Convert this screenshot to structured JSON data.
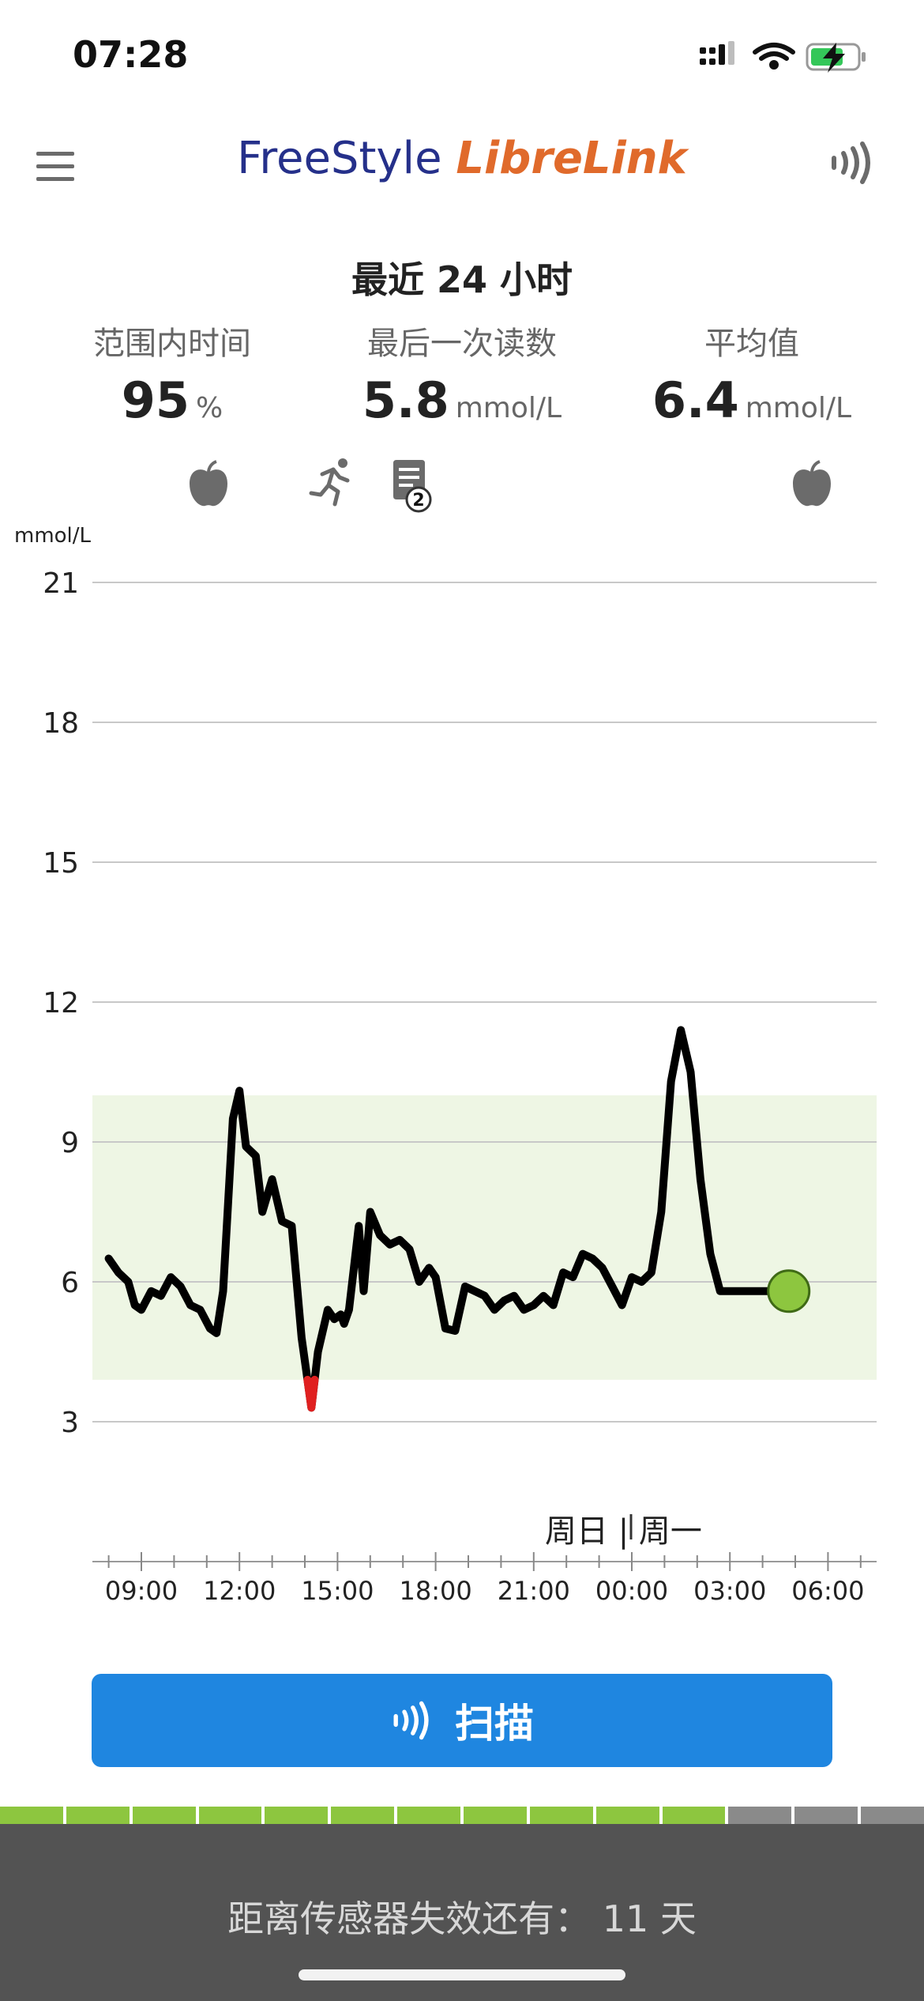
{
  "status_bar": {
    "time": "07:28"
  },
  "header": {
    "brand_part1": "FreeStyle ",
    "brand_part2": "LibreLink"
  },
  "summary": {
    "period_title": "最近 24 小时",
    "time_in_range": {
      "label": "范围内时间",
      "value": "95",
      "unit": "%"
    },
    "last_reading": {
      "label": "最后一次读数",
      "value": "5.8",
      "unit": "mmol/L"
    },
    "average": {
      "label": "平均值",
      "value": "6.4",
      "unit": "mmol/L"
    },
    "note_badge": "2"
  },
  "chart_data": {
    "type": "line",
    "ylabel": "mmol/L",
    "yticks": [
      "21",
      "18",
      "15",
      "12",
      "9",
      "6",
      "3"
    ],
    "ylim": [
      3,
      21
    ],
    "target_range": [
      3.9,
      10.0
    ],
    "low_threshold": 3.9,
    "xticks": [
      "09:00",
      "12:00",
      "15:00",
      "18:00",
      "21:00",
      "00:00",
      "03:00",
      "06:00"
    ],
    "x_unit": "hours since 09:00 (Sunday)",
    "day_labels": [
      "周日",
      "周一"
    ],
    "grid": true,
    "line_color": "#000000",
    "low_color": "#e02020",
    "range_fill": "#eef6e4",
    "current_marker_color": "#8dc63f",
    "series": [
      {
        "x": [
          -1.0,
          -0.7,
          -0.4,
          -0.2,
          0.0,
          0.3,
          0.6,
          0.9,
          1.2,
          1.5,
          1.8,
          2.1,
          2.3,
          2.5,
          2.8,
          3.0,
          3.2,
          3.5,
          3.7,
          4.0,
          4.3,
          4.6,
          4.9,
          5.2,
          5.4,
          5.7,
          5.9,
          6.1,
          6.2,
          6.35,
          6.5,
          6.65,
          6.8,
          7.0,
          7.3,
          7.6,
          7.9,
          8.2,
          8.5,
          8.8,
          9.0,
          9.3,
          9.6,
          9.9,
          10.2,
          10.5,
          10.8,
          11.1,
          11.4,
          11.7,
          12.0,
          12.3,
          12.6,
          12.9,
          13.2,
          13.5,
          13.8,
          14.1,
          14.4,
          14.7,
          15.0,
          15.3,
          15.6,
          15.9,
          16.2,
          16.5,
          16.8,
          17.1,
          17.4,
          17.7,
          18.0,
          18.3,
          18.6,
          18.9,
          19.2,
          19.5,
          19.8,
          20.1,
          20.4,
          20.7,
          20.9,
          21.1,
          21.3,
          21.5,
          21.7,
          21.9
        ],
        "y": [
          6.5,
          6.2,
          6.0,
          5.5,
          5.4,
          5.8,
          5.7,
          6.1,
          5.9,
          5.5,
          5.4,
          5.0,
          4.9,
          5.8,
          9.5,
          10.1,
          8.9,
          8.7,
          7.5,
          8.2,
          7.3,
          7.2,
          4.8,
          3.3,
          4.5,
          5.4,
          5.2,
          5.3,
          5.1,
          5.4,
          6.3,
          7.2,
          5.8,
          7.5,
          7.0,
          6.8,
          6.9,
          6.7,
          6.0,
          6.3,
          6.1,
          5.0,
          4.95,
          5.9,
          5.8,
          5.7,
          5.4,
          5.6,
          5.7,
          5.4,
          5.5,
          5.7,
          5.5,
          6.2,
          6.1,
          6.6,
          6.5,
          6.3,
          5.9,
          5.5,
          6.1,
          6.0,
          6.2,
          7.5,
          10.3,
          11.4,
          10.5,
          8.2,
          6.6,
          5.8,
          5.8,
          5.8,
          5.8,
          5.8,
          5.8,
          5.8,
          5.8,
          5.8,
          5.8,
          5.8,
          5.8,
          5.8,
          5.8,
          5.8,
          5.8,
          5.8
        ]
      }
    ]
  },
  "scan_button": {
    "label": "扫描"
  },
  "sensor": {
    "segments_total": 14,
    "segments_filled": 11,
    "filled_color": "#8dc63f",
    "empty_color": "#8a8a8a",
    "footer_text": "距离传感器失效还有：  11 天"
  }
}
